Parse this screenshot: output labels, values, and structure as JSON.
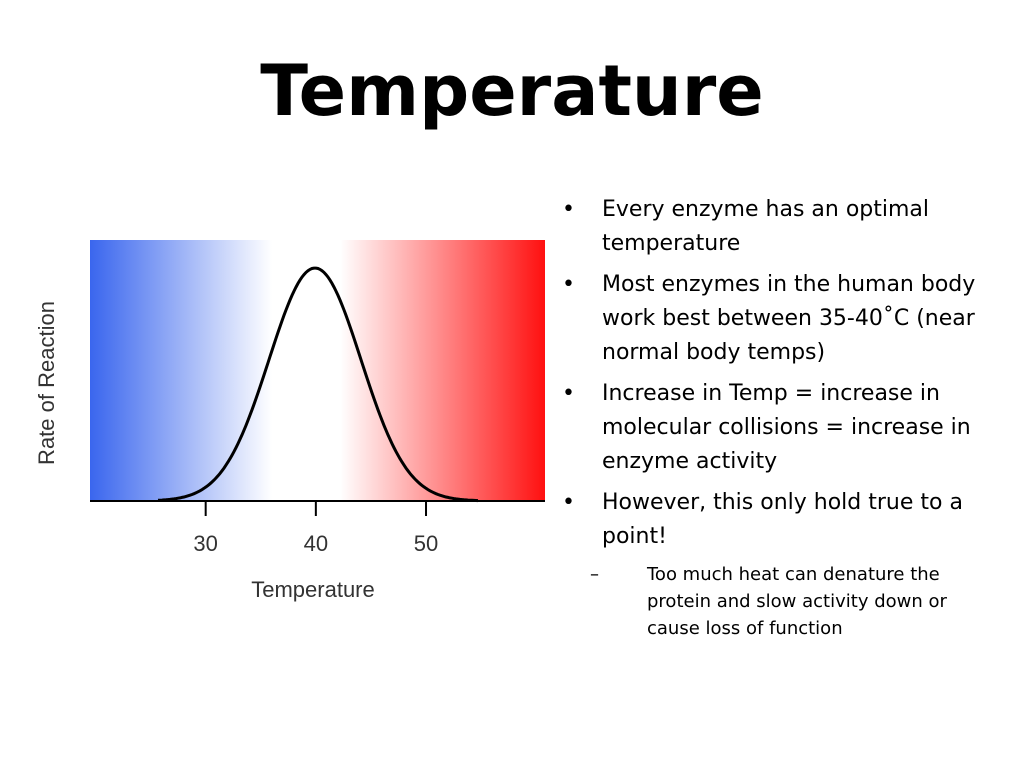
{
  "title": "Temperature",
  "chart_data": {
    "type": "illustration",
    "xlabel": "Temperature",
    "ylabel": "Rate of Reaction",
    "xlim": [
      19.5,
      60.8
    ],
    "xticks": [
      30,
      40,
      50
    ]
  },
  "bullets": [
    {
      "text": "Every enzyme has an optimal temperature"
    },
    {
      "text": "Most enzymes in the human body work best between 35-40˚C (near normal body temps)"
    },
    {
      "text": "Increase in Temp = increase in molecular collisions = increase in enzyme activity"
    },
    {
      "text": "However, this only hold true to a point!",
      "sub": [
        "Too much heat can denature the protein and slow activity down or cause loss of function"
      ]
    }
  ]
}
